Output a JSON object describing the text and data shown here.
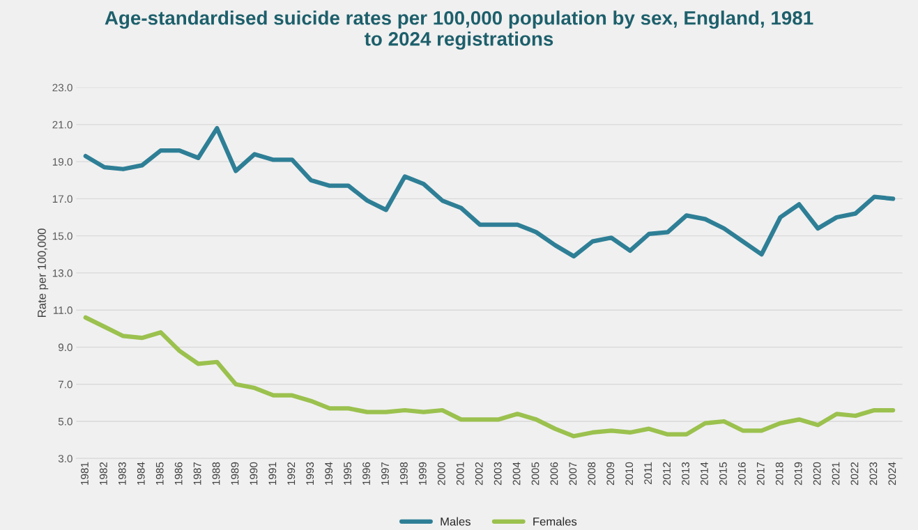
{
  "chart_data": {
    "type": "line",
    "title": "Age-standardised suicide rates per 100,000 population by sex, England, 1981\nto 2024 registrations",
    "ylabel": "Rate per 100,000",
    "categories": [
      "1981",
      "1982",
      "1983",
      "1984",
      "1985",
      "1986",
      "1987",
      "1988",
      "1989",
      "1990",
      "1991",
      "1992",
      "1993",
      "1994",
      "1995",
      "1996",
      "1997",
      "1998",
      "1999",
      "2000",
      "2001",
      "2002",
      "2003",
      "2004",
      "2005",
      "2006",
      "2007",
      "2008",
      "2009",
      "2010",
      "2011",
      "2012",
      "2013",
      "2014",
      "2015",
      "2016",
      "2017",
      "2018",
      "2019",
      "2020",
      "2021",
      "2022",
      "2023",
      "2024"
    ],
    "series": [
      {
        "name": "Males",
        "color": "#2e7f96",
        "values": [
          19.3,
          18.7,
          18.6,
          18.8,
          19.6,
          19.6,
          19.2,
          20.8,
          18.5,
          19.4,
          19.1,
          19.1,
          18.0,
          17.7,
          17.7,
          16.9,
          16.4,
          18.2,
          17.8,
          16.9,
          16.5,
          15.6,
          15.6,
          15.6,
          15.2,
          14.5,
          13.9,
          14.7,
          14.9,
          14.2,
          15.1,
          15.2,
          16.1,
          15.9,
          15.4,
          14.7,
          14.0,
          16.0,
          16.7,
          15.4,
          16.0,
          16.2,
          17.1,
          17.0
        ]
      },
      {
        "name": "Females",
        "color": "#9bc14e",
        "values": [
          10.6,
          10.1,
          9.6,
          9.5,
          9.8,
          8.8,
          8.1,
          8.2,
          7.0,
          6.8,
          6.4,
          6.4,
          6.1,
          5.7,
          5.7,
          5.5,
          5.5,
          5.6,
          5.5,
          5.6,
          5.1,
          5.1,
          5.1,
          5.4,
          5.1,
          4.6,
          4.2,
          4.4,
          4.5,
          4.4,
          4.6,
          4.3,
          4.3,
          4.9,
          5.0,
          4.5,
          4.5,
          4.9,
          5.1,
          4.8,
          5.4,
          5.3,
          5.6,
          5.6
        ]
      }
    ],
    "ylim": [
      3,
      23
    ],
    "yticks": [
      {
        "value": 3,
        "label": "3.0"
      },
      {
        "value": 5,
        "label": "5.0"
      },
      {
        "value": 7,
        "label": "7.0"
      },
      {
        "value": 9,
        "label": "9.0"
      },
      {
        "value": 11,
        "label": "11.0"
      },
      {
        "value": 13,
        "label": "13.0"
      },
      {
        "value": 15,
        "label": "15.0"
      },
      {
        "value": 17,
        "label": "17.0"
      },
      {
        "value": 19,
        "label": "19.0"
      },
      {
        "value": 21,
        "label": "21.0"
      },
      {
        "value": 23,
        "label": "23.0"
      }
    ],
    "grid": "y",
    "legend": "bottom",
    "marker": "none",
    "line_style": "solid"
  }
}
